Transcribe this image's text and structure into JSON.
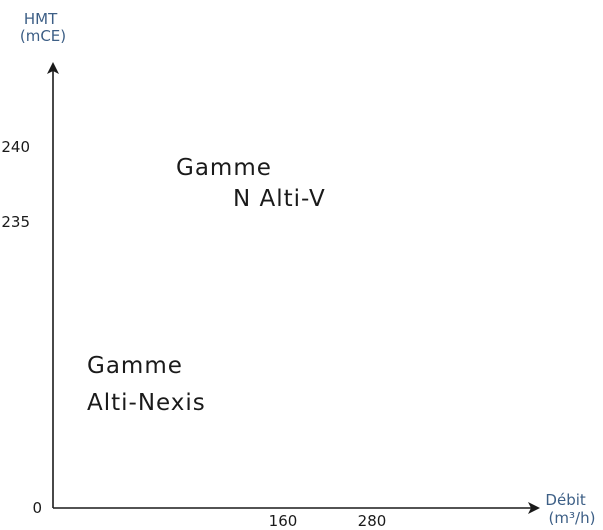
{
  "chart_data": {
    "type": "area",
    "title": "",
    "xlabel": [
      "Débit",
      "(m³/h)"
    ],
    "ylabel": [
      "HMT",
      "(mCE)"
    ],
    "x_ticks": [
      160,
      280
    ],
    "y_ticks": [
      0,
      235,
      240
    ],
    "grid": false,
    "regions": [
      {
        "name": "Gamme N Alti-V",
        "lines": [
          "Gamme",
          "N  Alti-V"
        ]
      },
      {
        "name": "Gamme Alti-Nexis",
        "lines": [
          "Gamme",
          "Alti-Nexis"
        ]
      }
    ]
  }
}
